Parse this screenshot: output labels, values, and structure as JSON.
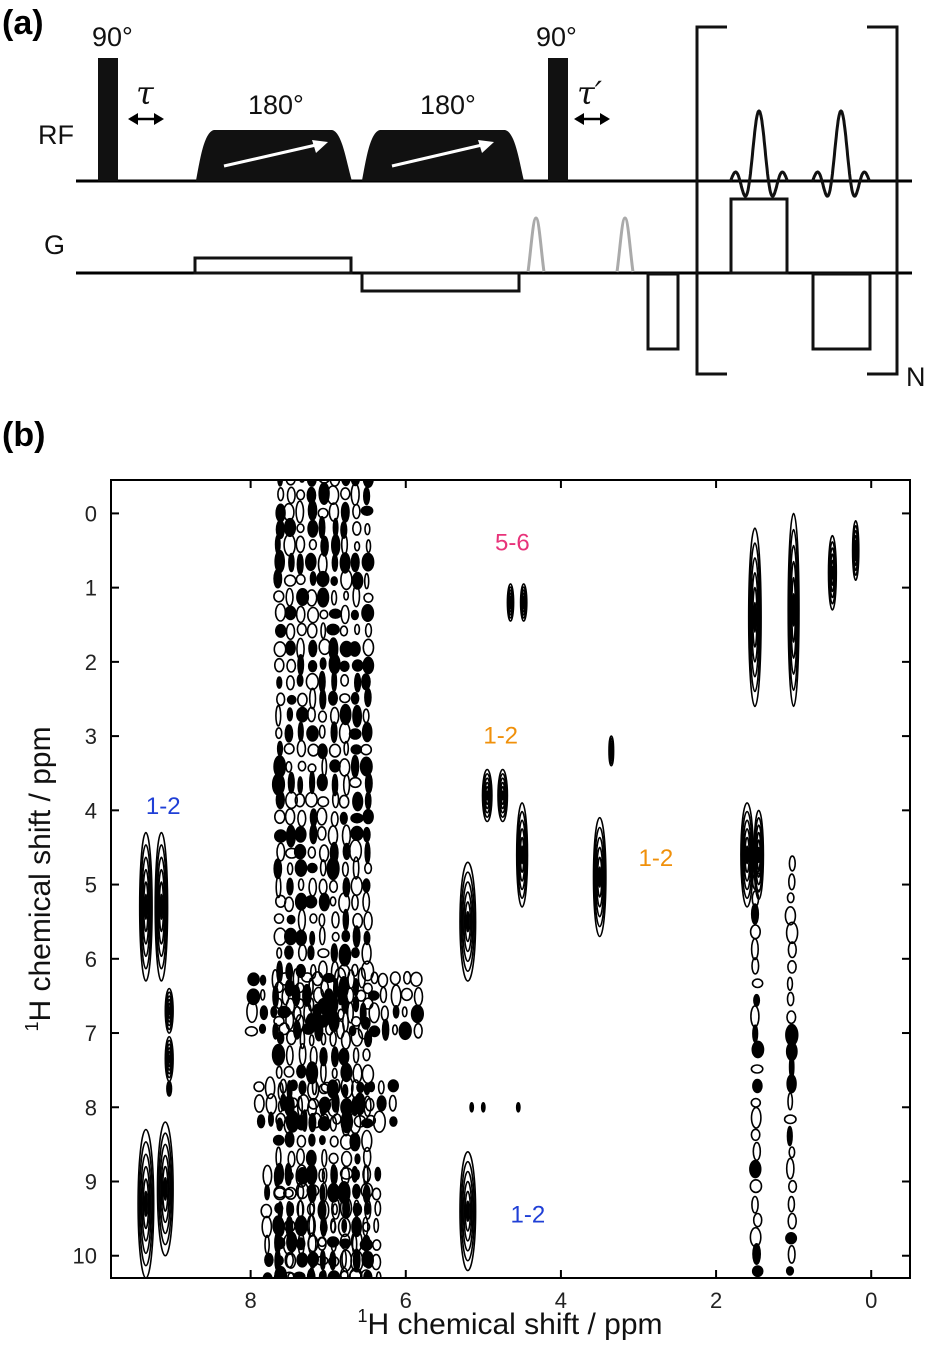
{
  "figure": {
    "panel_a_label": "(a)",
    "panel_b_label": "(b)"
  },
  "sequence": {
    "rf_label": "RF",
    "g_label": "G",
    "pulse1_label": "90°",
    "pulse2_label": "90°",
    "tau_label": "τ",
    "tau_prime_label": "τ′",
    "chirp1_label": "180°",
    "chirp2_label": "180°",
    "loop_label": "N"
  },
  "colors": {
    "blue": "#1f3fd6",
    "orange": "#f0900a",
    "pink": "#e8337a",
    "grey_gradient": "#b0b0b0"
  },
  "chart_data": {
    "type": "heatmap",
    "subtype": "2D NMR contour plot",
    "xlabel_sup": "1",
    "xlabel": "H chemical shift / ppm",
    "ylabel_sup": "1",
    "ylabel": "H chemical shift / ppm",
    "x_reversed": true,
    "y_reversed": true,
    "xlim": [
      9.8,
      -0.5
    ],
    "ylim": [
      -0.45,
      10.3
    ],
    "xticks": [
      "8",
      "6",
      "4",
      "2",
      "0"
    ],
    "xtick_values": [
      8,
      6,
      4,
      2,
      0
    ],
    "yticks": [
      "0",
      "1",
      "2",
      "3",
      "4",
      "5",
      "6",
      "7",
      "8",
      "9",
      "10"
    ],
    "ytick_values": [
      0,
      1,
      2,
      3,
      4,
      5,
      6,
      7,
      8,
      9,
      10
    ],
    "annotations": [
      {
        "text": "5-6",
        "color": "pink",
        "x": 4.85,
        "y": 0.5
      },
      {
        "text": "1-2",
        "color": "orange",
        "x": 5.0,
        "y": 3.1
      },
      {
        "text": "1-2",
        "color": "orange",
        "x": 3.0,
        "y": 4.75
      },
      {
        "text": "1-2",
        "color": "blue",
        "x": 9.35,
        "y": 4.05
      },
      {
        "text": "1-2",
        "color": "blue",
        "x": 4.65,
        "y": 9.55
      }
    ],
    "peaks": [
      {
        "x": 9.35,
        "y": 5.3,
        "sx": 0.08,
        "sy": 1.0
      },
      {
        "x": 9.15,
        "y": 5.3,
        "sx": 0.08,
        "sy": 1.0
      },
      {
        "x": 9.05,
        "y": 6.7,
        "sx": 0.05,
        "sy": 0.3
      },
      {
        "x": 9.05,
        "y": 7.35,
        "sx": 0.05,
        "sy": 0.3
      },
      {
        "x": 9.05,
        "y": 7.75,
        "sx": 0.03,
        "sy": 0.1
      },
      {
        "x": 9.35,
        "y": 9.3,
        "sx": 0.1,
        "sy": 1.0
      },
      {
        "x": 9.1,
        "y": 9.1,
        "sx": 0.1,
        "sy": 0.9
      },
      {
        "x": 5.2,
        "y": 5.5,
        "sx": 0.1,
        "sy": 0.8
      },
      {
        "x": 5.2,
        "y": 9.4,
        "sx": 0.1,
        "sy": 0.8
      },
      {
        "x": 4.95,
        "y": 3.8,
        "sx": 0.06,
        "sy": 0.35
      },
      {
        "x": 4.75,
        "y": 3.8,
        "sx": 0.06,
        "sy": 0.35
      },
      {
        "x": 4.5,
        "y": 4.6,
        "sx": 0.07,
        "sy": 0.7
      },
      {
        "x": 4.65,
        "y": 1.2,
        "sx": 0.04,
        "sy": 0.25
      },
      {
        "x": 4.48,
        "y": 1.2,
        "sx": 0.04,
        "sy": 0.25
      },
      {
        "x": 3.5,
        "y": 4.9,
        "sx": 0.08,
        "sy": 0.8
      },
      {
        "x": 3.35,
        "y": 3.2,
        "sx": 0.03,
        "sy": 0.2
      },
      {
        "x": 5.15,
        "y": 8.0,
        "sx": 0.02,
        "sy": 0.06
      },
      {
        "x": 5.0,
        "y": 8.0,
        "sx": 0.02,
        "sy": 0.06
      },
      {
        "x": 4.55,
        "y": 8.0,
        "sx": 0.02,
        "sy": 0.06
      },
      {
        "x": 1.5,
        "y": 1.4,
        "sx": 0.08,
        "sy": 1.2
      },
      {
        "x": 1.0,
        "y": 1.3,
        "sx": 0.07,
        "sy": 1.3
      },
      {
        "x": 0.5,
        "y": 0.8,
        "sx": 0.05,
        "sy": 0.5
      },
      {
        "x": 0.2,
        "y": 0.5,
        "sx": 0.04,
        "sy": 0.4
      },
      {
        "x": 1.6,
        "y": 4.6,
        "sx": 0.08,
        "sy": 0.7
      },
      {
        "x": 1.45,
        "y": 4.6,
        "sx": 0.06,
        "sy": 0.6
      }
    ],
    "bands": [
      {
        "x": 7.05,
        "y": 5.0,
        "sx": 0.6,
        "sy": 5.5
      },
      {
        "x": 6.9,
        "y": 6.6,
        "sx": 1.1,
        "sy": 0.35
      },
      {
        "x": 7.0,
        "y": 8.0,
        "sx": 0.9,
        "sy": 0.3
      },
      {
        "x": 7.05,
        "y": 9.6,
        "sx": 0.75,
        "sy": 0.7
      },
      {
        "x": 1.45,
        "y": 7.5,
        "sx": 0.05,
        "sy": 2.8
      },
      {
        "x": 1.0,
        "y": 7.5,
        "sx": 0.05,
        "sy": 2.8
      }
    ]
  }
}
